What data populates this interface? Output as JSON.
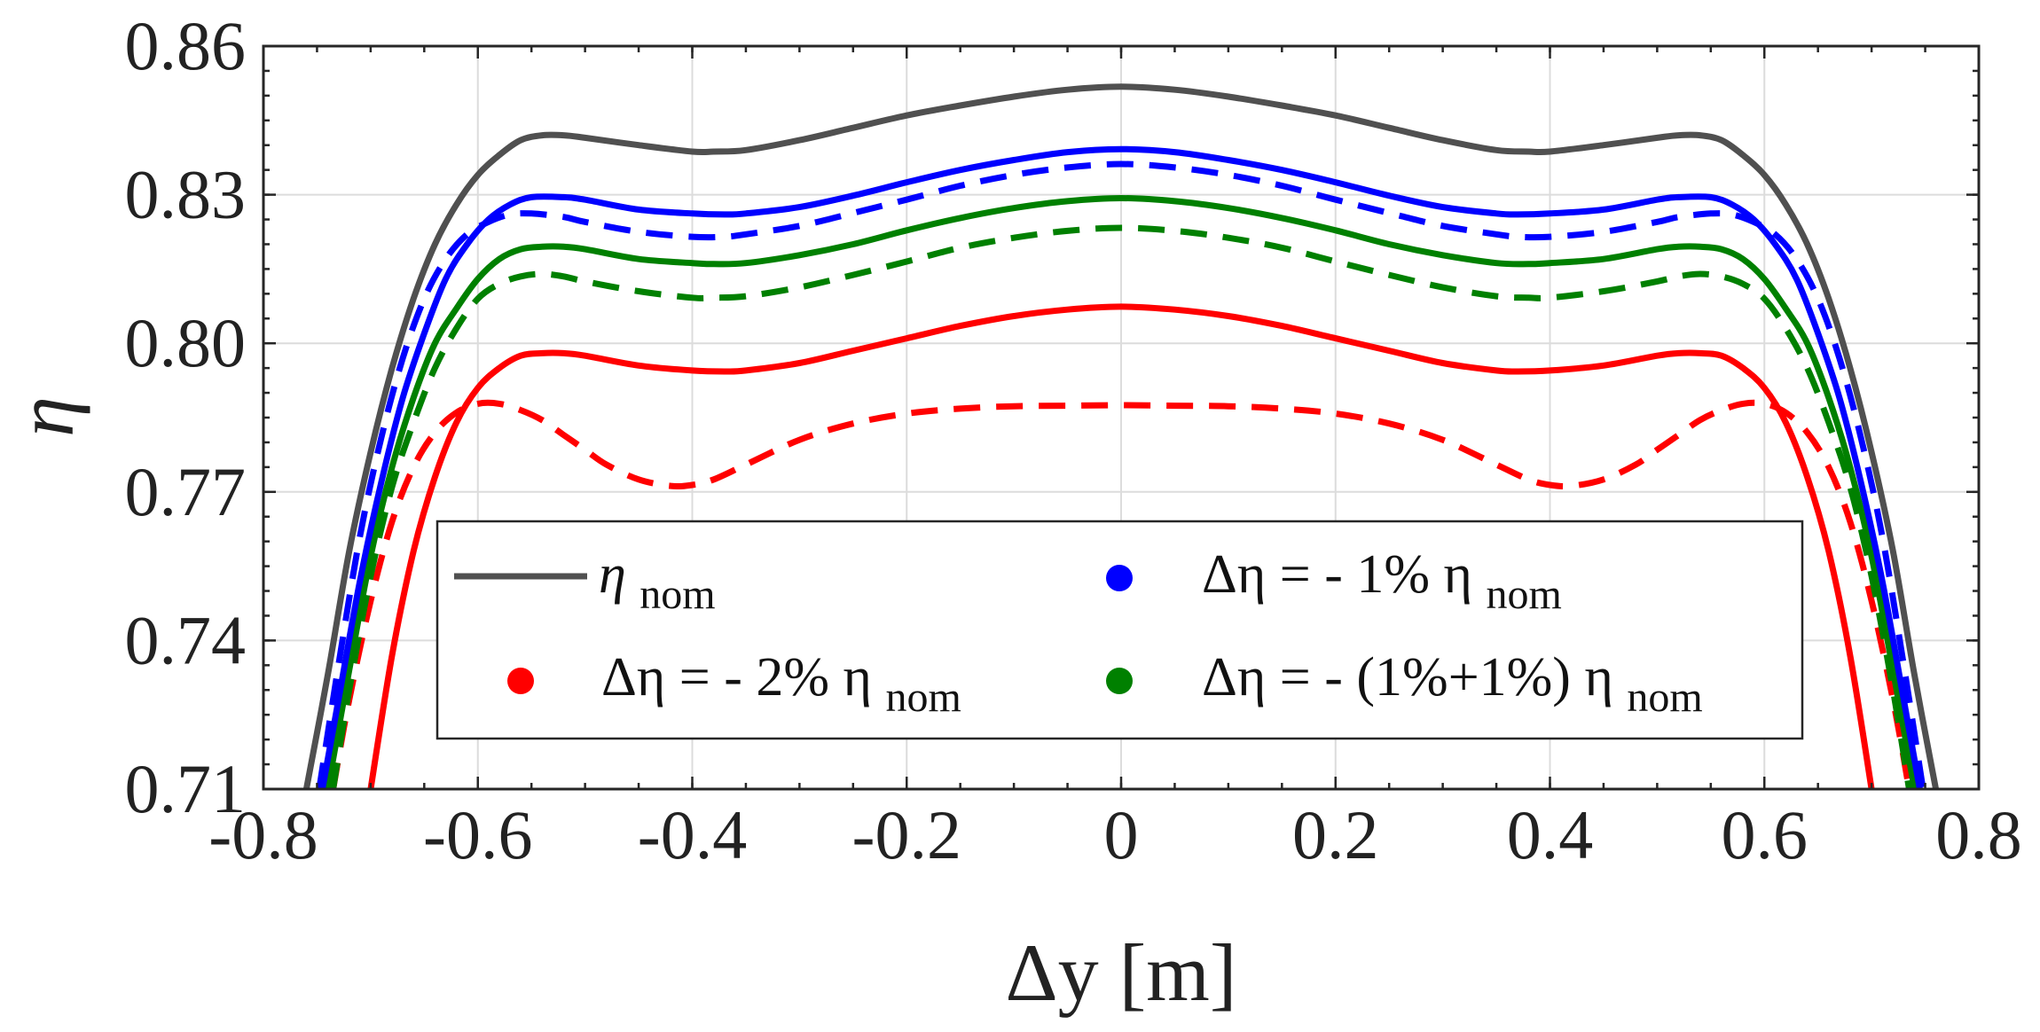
{
  "chart_data": {
    "type": "line",
    "xlabel": "Δy [m]",
    "ylabel": "η",
    "xlim": [
      -0.8,
      0.8
    ],
    "ylim": [
      0.71,
      0.86
    ],
    "grid": true,
    "x_ticks": [
      "-0.8",
      "-0.6",
      "-0.4",
      "-0.2",
      "0",
      "0.2",
      "0.4",
      "0.6",
      "0.8"
    ],
    "y_ticks": [
      "0.71",
      "0.74",
      "0.77",
      "0.80",
      "0.83",
      "0.86"
    ],
    "legend": {
      "placement": "lower-center",
      "entries": [
        {
          "main": "η",
          "sub": "nom",
          "marker": "line",
          "color": "#505050"
        },
        {
          "main": "Δη = - 1% η",
          "sub": "nom",
          "marker": "dot",
          "color": "#0000ff"
        },
        {
          "main": "Δη = - 2% η",
          "sub": "nom",
          "marker": "dot",
          "color": "#ff0000"
        },
        {
          "main": "Δη = - (1%+1%) η",
          "sub": "nom",
          "marker": "dot",
          "color": "#008000"
        }
      ]
    },
    "series": [
      {
        "name": "η_nom",
        "color": "#505050",
        "dash": "solid",
        "x": [
          -0.76,
          -0.74,
          -0.72,
          -0.7,
          -0.68,
          -0.66,
          -0.64,
          -0.62,
          -0.6,
          -0.58,
          -0.56,
          -0.54,
          -0.52,
          -0.5,
          -0.45,
          -0.4,
          -0.38,
          -0.35,
          -0.3,
          -0.25,
          -0.2,
          -0.15,
          -0.1,
          -0.05,
          0,
          0.05,
          0.1,
          0.15,
          0.2,
          0.25,
          0.3,
          0.35,
          0.38,
          0.4,
          0.45,
          0.5,
          0.52,
          0.54,
          0.56,
          0.58,
          0.6,
          0.62,
          0.64,
          0.66,
          0.68,
          0.7,
          0.72,
          0.74,
          0.76
        ],
        "y": [
          0.71,
          0.733,
          0.758,
          0.778,
          0.795,
          0.809,
          0.82,
          0.828,
          0.834,
          0.838,
          0.841,
          0.842,
          0.842,
          0.8415,
          0.84,
          0.8387,
          0.8387,
          0.839,
          0.841,
          0.8435,
          0.846,
          0.848,
          0.8498,
          0.8512,
          0.8518,
          0.8512,
          0.8498,
          0.848,
          0.846,
          0.8435,
          0.841,
          0.839,
          0.8387,
          0.8387,
          0.84,
          0.8415,
          0.842,
          0.842,
          0.841,
          0.838,
          0.834,
          0.828,
          0.82,
          0.809,
          0.795,
          0.778,
          0.758,
          0.733,
          0.71
        ]
      },
      {
        "name": "Δη = -1% solid",
        "color": "#0000ff",
        "dash": "solid",
        "x": [
          -0.745,
          -0.73,
          -0.71,
          -0.69,
          -0.67,
          -0.65,
          -0.63,
          -0.61,
          -0.59,
          -0.57,
          -0.55,
          -0.52,
          -0.5,
          -0.45,
          -0.4,
          -0.37,
          -0.35,
          -0.3,
          -0.25,
          -0.2,
          -0.15,
          -0.1,
          -0.05,
          0,
          0.05,
          0.1,
          0.15,
          0.2,
          0.25,
          0.3,
          0.35,
          0.37,
          0.4,
          0.45,
          0.5,
          0.52,
          0.55,
          0.57,
          0.59,
          0.61,
          0.63,
          0.65,
          0.67,
          0.69,
          0.71,
          0.73,
          0.745
        ],
        "y": [
          0.71,
          0.728,
          0.752,
          0.772,
          0.789,
          0.802,
          0.813,
          0.82,
          0.825,
          0.828,
          0.8295,
          0.8295,
          0.829,
          0.827,
          0.8262,
          0.826,
          0.8262,
          0.8275,
          0.8298,
          0.8325,
          0.835,
          0.837,
          0.8386,
          0.8392,
          0.8386,
          0.837,
          0.835,
          0.8325,
          0.8298,
          0.8275,
          0.8262,
          0.826,
          0.8262,
          0.827,
          0.829,
          0.8295,
          0.8295,
          0.828,
          0.825,
          0.82,
          0.813,
          0.802,
          0.789,
          0.772,
          0.752,
          0.728,
          0.71
        ]
      },
      {
        "name": "Δη = -1% dashed",
        "color": "#0000ff",
        "dash": "dashed",
        "x": [
          -0.748,
          -0.73,
          -0.71,
          -0.69,
          -0.67,
          -0.65,
          -0.63,
          -0.61,
          -0.59,
          -0.57,
          -0.55,
          -0.52,
          -0.5,
          -0.45,
          -0.4,
          -0.37,
          -0.35,
          -0.3,
          -0.25,
          -0.2,
          -0.15,
          -0.1,
          -0.05,
          0,
          0.05,
          0.1,
          0.15,
          0.2,
          0.25,
          0.3,
          0.35,
          0.37,
          0.4,
          0.45,
          0.5,
          0.52,
          0.55,
          0.57,
          0.59,
          0.61,
          0.63,
          0.65,
          0.67,
          0.69,
          0.71,
          0.73,
          0.748
        ],
        "y": [
          0.71,
          0.735,
          0.761,
          0.781,
          0.797,
          0.809,
          0.817,
          0.822,
          0.8245,
          0.826,
          0.8262,
          0.8255,
          0.8245,
          0.8225,
          0.8215,
          0.8215,
          0.822,
          0.8237,
          0.8263,
          0.829,
          0.8318,
          0.834,
          0.8355,
          0.8362,
          0.8355,
          0.834,
          0.8318,
          0.829,
          0.8263,
          0.8237,
          0.822,
          0.8215,
          0.8215,
          0.8225,
          0.8245,
          0.8255,
          0.8262,
          0.826,
          0.8245,
          0.822,
          0.817,
          0.809,
          0.797,
          0.781,
          0.761,
          0.735,
          0.71
        ]
      },
      {
        "name": "Δη = -(1%+1%) solid",
        "color": "#008000",
        "dash": "solid",
        "x": [
          -0.74,
          -0.72,
          -0.7,
          -0.68,
          -0.66,
          -0.64,
          -0.62,
          -0.6,
          -0.58,
          -0.56,
          -0.54,
          -0.52,
          -0.5,
          -0.45,
          -0.4,
          -0.38,
          -0.35,
          -0.3,
          -0.25,
          -0.2,
          -0.15,
          -0.1,
          -0.05,
          0,
          0.05,
          0.1,
          0.15,
          0.2,
          0.25,
          0.3,
          0.35,
          0.38,
          0.4,
          0.45,
          0.5,
          0.52,
          0.54,
          0.56,
          0.58,
          0.6,
          0.62,
          0.64,
          0.66,
          0.68,
          0.7,
          0.72,
          0.74
        ],
        "y": [
          0.71,
          0.734,
          0.757,
          0.775,
          0.789,
          0.8,
          0.807,
          0.813,
          0.817,
          0.819,
          0.8195,
          0.8195,
          0.819,
          0.817,
          0.8162,
          0.816,
          0.8162,
          0.8178,
          0.82,
          0.8228,
          0.8253,
          0.8273,
          0.8287,
          0.8293,
          0.8287,
          0.8273,
          0.8253,
          0.8228,
          0.82,
          0.8178,
          0.8162,
          0.816,
          0.8162,
          0.817,
          0.819,
          0.8195,
          0.8195,
          0.819,
          0.817,
          0.813,
          0.807,
          0.8,
          0.789,
          0.775,
          0.757,
          0.734,
          0.71
        ]
      },
      {
        "name": "Δη = -(1%+1%) dashed",
        "color": "#008000",
        "dash": "dashed",
        "x": [
          -0.735,
          -0.72,
          -0.7,
          -0.68,
          -0.66,
          -0.64,
          -0.62,
          -0.6,
          -0.58,
          -0.56,
          -0.54,
          -0.52,
          -0.5,
          -0.45,
          -0.4,
          -0.38,
          -0.35,
          -0.3,
          -0.25,
          -0.2,
          -0.15,
          -0.1,
          -0.05,
          0,
          0.05,
          0.1,
          0.15,
          0.2,
          0.25,
          0.3,
          0.35,
          0.38,
          0.4,
          0.45,
          0.5,
          0.52,
          0.54,
          0.56,
          0.58,
          0.6,
          0.62,
          0.64,
          0.66,
          0.68,
          0.7,
          0.72,
          0.735
        ],
        "y": [
          0.71,
          0.73,
          0.753,
          0.771,
          0.784,
          0.795,
          0.803,
          0.809,
          0.812,
          0.8135,
          0.814,
          0.8135,
          0.8125,
          0.8105,
          0.8092,
          0.8092,
          0.8095,
          0.8113,
          0.8138,
          0.8165,
          0.8193,
          0.8213,
          0.8227,
          0.8233,
          0.8227,
          0.8213,
          0.8193,
          0.8165,
          0.8138,
          0.8113,
          0.8095,
          0.8092,
          0.8092,
          0.8105,
          0.8125,
          0.8135,
          0.814,
          0.8135,
          0.812,
          0.809,
          0.803,
          0.795,
          0.784,
          0.771,
          0.753,
          0.73,
          0.71
        ]
      },
      {
        "name": "Δη = -2% solid",
        "color": "#ff0000",
        "dash": "solid",
        "x": [
          -0.7,
          -0.68,
          -0.66,
          -0.64,
          -0.62,
          -0.6,
          -0.58,
          -0.56,
          -0.54,
          -0.52,
          -0.5,
          -0.45,
          -0.4,
          -0.37,
          -0.35,
          -0.3,
          -0.25,
          -0.2,
          -0.15,
          -0.1,
          -0.05,
          0,
          0.05,
          0.1,
          0.15,
          0.2,
          0.25,
          0.3,
          0.35,
          0.37,
          0.4,
          0.45,
          0.5,
          0.52,
          0.54,
          0.56,
          0.58,
          0.6,
          0.62,
          0.64,
          0.66,
          0.68,
          0.7
        ],
        "y": [
          0.71,
          0.737,
          0.758,
          0.773,
          0.784,
          0.791,
          0.795,
          0.7975,
          0.798,
          0.798,
          0.7975,
          0.7955,
          0.7945,
          0.7943,
          0.7945,
          0.796,
          0.7985,
          0.801,
          0.8035,
          0.8055,
          0.8068,
          0.8074,
          0.8068,
          0.8055,
          0.8035,
          0.801,
          0.7985,
          0.796,
          0.7945,
          0.7943,
          0.7945,
          0.7955,
          0.7975,
          0.798,
          0.798,
          0.7975,
          0.795,
          0.791,
          0.784,
          0.773,
          0.758,
          0.737,
          0.71
        ]
      },
      {
        "name": "Δη = -2% dashed",
        "color": "#ff0000",
        "dash": "dashed",
        "x": [
          -0.735,
          -0.72,
          -0.7,
          -0.68,
          -0.66,
          -0.64,
          -0.62,
          -0.6,
          -0.58,
          -0.56,
          -0.54,
          -0.52,
          -0.5,
          -0.48,
          -0.45,
          -0.42,
          -0.4,
          -0.38,
          -0.35,
          -0.3,
          -0.25,
          -0.2,
          -0.15,
          -0.1,
          -0.05,
          0,
          0.05,
          0.1,
          0.15,
          0.2,
          0.25,
          0.3,
          0.35,
          0.38,
          0.4,
          0.42,
          0.45,
          0.48,
          0.5,
          0.52,
          0.54,
          0.56,
          0.58,
          0.6,
          0.62,
          0.64,
          0.66,
          0.68,
          0.7,
          0.72,
          0.735
        ],
        "y": [
          0.71,
          0.728,
          0.748,
          0.764,
          0.775,
          0.782,
          0.786,
          0.7878,
          0.7878,
          0.7865,
          0.7845,
          0.7815,
          0.7785,
          0.7755,
          0.7725,
          0.7712,
          0.7714,
          0.7725,
          0.7755,
          0.7805,
          0.7838,
          0.7858,
          0.7868,
          0.7873,
          0.7874,
          0.7875,
          0.7874,
          0.7873,
          0.7868,
          0.7858,
          0.7838,
          0.7805,
          0.7755,
          0.7725,
          0.7714,
          0.7712,
          0.7725,
          0.7755,
          0.7785,
          0.7815,
          0.7845,
          0.7865,
          0.7878,
          0.7878,
          0.786,
          0.782,
          0.775,
          0.764,
          0.748,
          0.728,
          0.71
        ]
      }
    ]
  }
}
